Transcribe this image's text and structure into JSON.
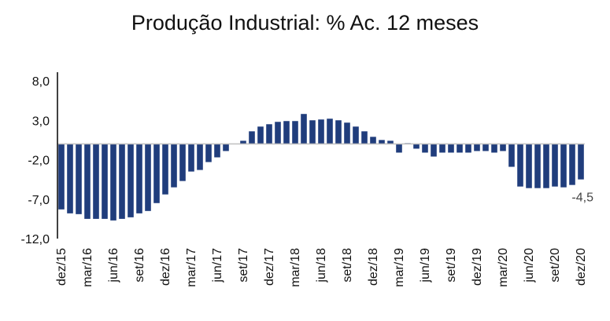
{
  "chart_data": {
    "type": "bar",
    "title": "Produção Industrial: % Ac. 12 meses",
    "xlabel": "",
    "ylabel": "",
    "ylim": [
      -12,
      8
    ],
    "yticks": [
      "8,0",
      "3,0",
      "-2,0",
      "-7,0",
      "-12,0"
    ],
    "ytick_values": [
      8,
      3,
      -2,
      -7,
      -12
    ],
    "grid": false,
    "legend": "none",
    "bar_color": "#203D7C",
    "zero_line_color": "#BFBFBF",
    "categories": [
      "dez/15",
      "jan/16",
      "fev/16",
      "mar/16",
      "abr/16",
      "mai/16",
      "jun/16",
      "jul/16",
      "ago/16",
      "set/16",
      "out/16",
      "nov/16",
      "dez/16",
      "jan/17",
      "fev/17",
      "mar/17",
      "abr/17",
      "mai/17",
      "jun/17",
      "jul/17",
      "ago/17",
      "set/17",
      "out/17",
      "nov/17",
      "dez/17",
      "jan/18",
      "fev/18",
      "mar/18",
      "abr/18",
      "mai/18",
      "jun/18",
      "jul/18",
      "ago/18",
      "set/18",
      "out/18",
      "nov/18",
      "dez/18",
      "jan/19",
      "fev/19",
      "mar/19",
      "abr/19",
      "mai/19",
      "jun/19",
      "jul/19",
      "ago/19",
      "set/19",
      "out/19",
      "nov/19",
      "dez/19",
      "jan/20",
      "fev/20",
      "mar/20",
      "abr/20",
      "mai/20",
      "jun/20",
      "jul/20",
      "ago/20",
      "set/20",
      "out/20",
      "nov/20",
      "dez/20"
    ],
    "tick_labels": [
      "dez/15",
      "mar/16",
      "jun/16",
      "set/16",
      "dez/16",
      "mar/17",
      "jun/17",
      "set/17",
      "dez/17",
      "mar/18",
      "jun/18",
      "set/18",
      "dez/18",
      "mar/19",
      "jun/19",
      "set/19",
      "dez/19",
      "mar/20",
      "jun/20",
      "set/20",
      "dez/20"
    ],
    "values": [
      -8.3,
      -8.8,
      -8.9,
      -9.5,
      -9.5,
      -9.5,
      -9.7,
      -9.5,
      -9.3,
      -8.8,
      -8.5,
      -7.5,
      -6.4,
      -5.5,
      -4.7,
      -3.5,
      -3.3,
      -2.3,
      -1.7,
      -0.9,
      0.0,
      0.4,
      1.6,
      2.2,
      2.5,
      2.8,
      2.9,
      2.9,
      3.8,
      3.0,
      3.1,
      3.2,
      3.0,
      2.7,
      2.2,
      1.6,
      0.9,
      0.5,
      0.4,
      -1.1,
      0.1,
      -0.6,
      -1.1,
      -1.6,
      -1.1,
      -1.1,
      -1.1,
      -1.1,
      -0.9,
      -0.9,
      -1.1,
      -0.9,
      -2.9,
      -5.4,
      -5.6,
      -5.6,
      -5.6,
      -5.4,
      -5.5,
      -5.2,
      -4.5
    ],
    "data_labels": [
      {
        "category": "dez/20",
        "text": "-4,5"
      }
    ]
  }
}
